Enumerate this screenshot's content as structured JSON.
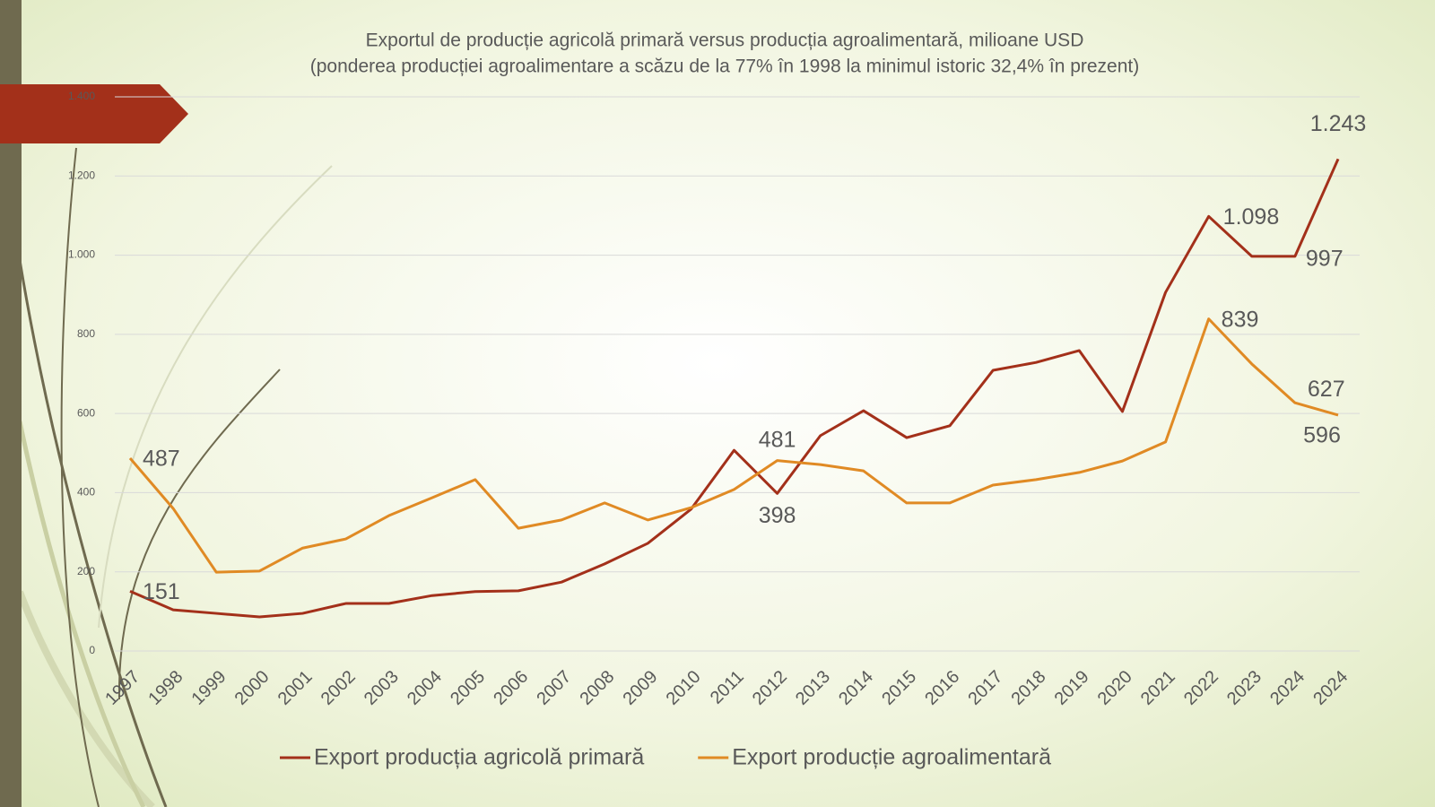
{
  "chart_data": {
    "type": "line",
    "title": "Exportul de producție agricolă primară versus producția agroalimentară, milioane USD",
    "subtitle": "(ponderea producției agroalimentare a scăzu de la 77% în 1998 la  minimul istoric 32,4% în prezent)",
    "categories": [
      "1997",
      "1998",
      "1999",
      "2000",
      "2001",
      "2002",
      "2003",
      "2004",
      "2005",
      "2006",
      "2007",
      "2008",
      "2009",
      "2010",
      "2011",
      "2012",
      "2013",
      "2014",
      "2015",
      "2016",
      "2017",
      "2018",
      "2019",
      "2020",
      "2021",
      "2022",
      "2023",
      "2024",
      "2024"
    ],
    "series": [
      {
        "name": "Export producția agricolă primară",
        "color": "#a3301a",
        "values": [
          151,
          104,
          95,
          86,
          95,
          120,
          120,
          140,
          150,
          152,
          174,
          220,
          272,
          358,
          507,
          398,
          544,
          607,
          539,
          569,
          709,
          729,
          759,
          605,
          906,
          1098,
          997,
          997,
          1243
        ],
        "value_labels": [
          "151",
          null,
          null,
          null,
          null,
          null,
          null,
          null,
          null,
          null,
          null,
          null,
          null,
          null,
          null,
          "398",
          null,
          null,
          null,
          null,
          null,
          null,
          null,
          null,
          null,
          "1.098",
          null,
          "997",
          "1.243"
        ]
      },
      {
        "name": "Export producție agroalimentară",
        "color": "#e08a24",
        "values": [
          487,
          360,
          199,
          202,
          260,
          283,
          342,
          387,
          433,
          310,
          331,
          374,
          331,
          362,
          408,
          481,
          471,
          455,
          374,
          374,
          419,
          433,
          451,
          480,
          528,
          839,
          725,
          627,
          596
        ],
        "value_labels": [
          "487",
          null,
          null,
          null,
          null,
          null,
          null,
          null,
          null,
          null,
          null,
          null,
          null,
          null,
          null,
          "481",
          null,
          null,
          null,
          null,
          null,
          null,
          null,
          null,
          null,
          "839",
          null,
          "627",
          "596"
        ]
      }
    ],
    "ylim": [
      0,
      1400
    ],
    "yticks": [
      0,
      200,
      400,
      600,
      800,
      {
        "value": 1000,
        "label": "1.000"
      },
      {
        "value": 1200,
        "label": "1.200"
      },
      {
        "value": 1400,
        "label": "1.400"
      }
    ],
    "grid": true,
    "legend": "bottom"
  }
}
